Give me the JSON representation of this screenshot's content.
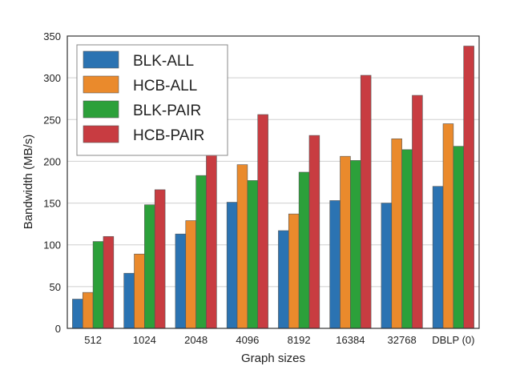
{
  "chart_data": {
    "type": "bar",
    "title": "",
    "xlabel": "Graph sizes",
    "ylabel": "Bandwidth (MB/s)",
    "ylim": [
      0,
      350
    ],
    "yticks": [
      0,
      50,
      100,
      150,
      200,
      250,
      300,
      350
    ],
    "grid": "horizontal",
    "legend_position": "top-left",
    "categories": [
      "512",
      "1024",
      "2048",
      "4096",
      "8192",
      "16384",
      "32768",
      "DBLP (0)"
    ],
    "series": [
      {
        "name": "BLK-ALL",
        "color": "#2b73b2",
        "values": [
          35,
          66,
          113,
          151,
          117,
          153,
          150,
          170
        ]
      },
      {
        "name": "HCB-ALL",
        "color": "#ea8a2c",
        "values": [
          43,
          89,
          129,
          196,
          137,
          206,
          227,
          245
        ]
      },
      {
        "name": "BLK-PAIR",
        "color": "#2ca03a",
        "values": [
          104,
          148,
          183,
          177,
          187,
          201,
          214,
          218
        ]
      },
      {
        "name": "HCB-PAIR",
        "color": "#c83c41",
        "values": [
          110,
          166,
          207,
          256,
          231,
          303,
          279,
          338
        ]
      }
    ]
  }
}
